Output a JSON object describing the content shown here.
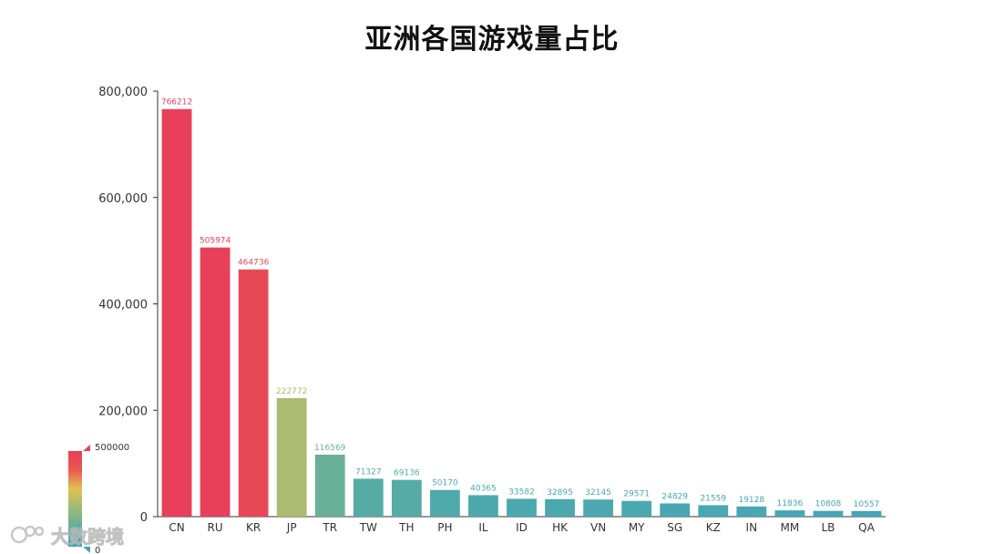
{
  "watermark": "大数跨境",
  "chart_data": {
    "type": "bar",
    "title": "亚洲各国游戏量占比",
    "xlabel": "",
    "ylabel": "",
    "categories": [
      "CN",
      "RU",
      "KR",
      "JP",
      "TR",
      "TW",
      "TH",
      "PH",
      "IL",
      "ID",
      "HK",
      "VN",
      "MY",
      "SG",
      "KZ",
      "IN",
      "MM",
      "LB",
      "QA"
    ],
    "values": [
      766212,
      505974,
      464736,
      222772,
      116569,
      71327,
      69136,
      50170,
      40365,
      33582,
      32895,
      32145,
      29571,
      24829,
      21559,
      19128,
      11836,
      10808,
      10557
    ],
    "ylim": [
      0,
      800000
    ],
    "yticks": [
      "0",
      "200,000",
      "400,000",
      "600,000",
      "800,000"
    ],
    "ytick_values": [
      0,
      200000,
      400000,
      600000,
      800000
    ],
    "grid": false,
    "data_labels": true,
    "visual_map": {
      "min": 0,
      "max": 500000,
      "min_label": "0",
      "max_label": "500000",
      "colors": [
        "#41a5b8",
        "#5fae9e",
        "#9bb97a",
        "#e2c253",
        "#e8594f",
        "#e83f5a"
      ]
    }
  }
}
